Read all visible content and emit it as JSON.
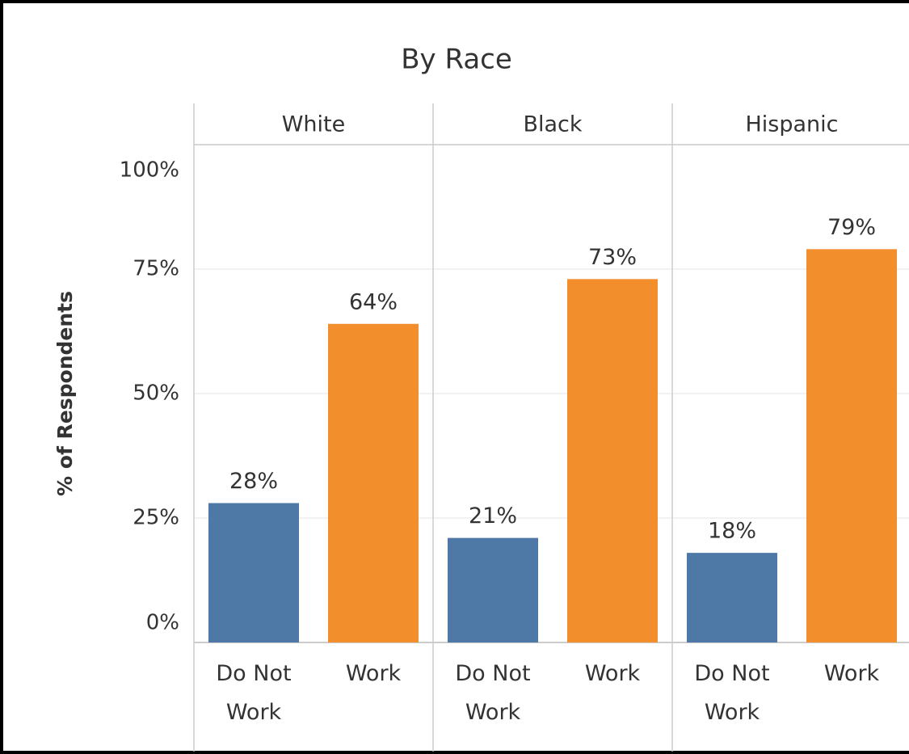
{
  "chart_data": {
    "type": "bar",
    "title": "By Race",
    "y_label": "% of Respondents",
    "categories": [
      "Do Not Work",
      "Work"
    ],
    "colors": [
      "#4e79a7",
      "#f28e2b"
    ],
    "panels": [
      {
        "name": "White",
        "values": [
          28,
          64
        ],
        "value_labels": [
          "28%",
          "64%"
        ]
      },
      {
        "name": "Black",
        "values": [
          21,
          73
        ],
        "value_labels": [
          "21%",
          "73%"
        ]
      },
      {
        "name": "Hispanic",
        "values": [
          18,
          79
        ],
        "value_labels": [
          "18%",
          "79%"
        ]
      }
    ],
    "ylim": [
      0,
      100
    ],
    "yticks": [
      {
        "value": 0,
        "label": "0%"
      },
      {
        "value": 25,
        "label": "25%"
      },
      {
        "value": 50,
        "label": "50%"
      },
      {
        "value": 75,
        "label": "75%"
      },
      {
        "value": 100,
        "label": "100%"
      }
    ],
    "grid": true
  }
}
